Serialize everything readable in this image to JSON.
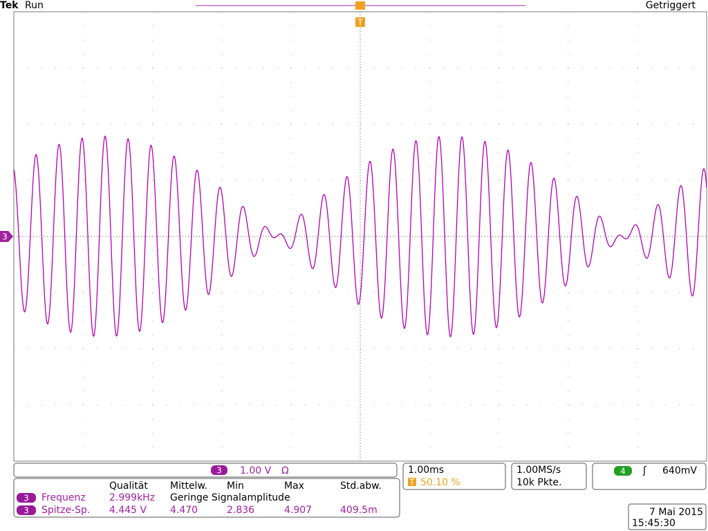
{
  "header": {
    "brand": "Tek",
    "status": "Run",
    "trigger_state": "Getriggert",
    "trigger_marker": "T",
    "channel_marker": "3"
  },
  "channel": {
    "number": "3",
    "scale": "1.00 V",
    "impedance": "Ω"
  },
  "timebase": {
    "scale": "1.00ms",
    "trigger_marker": "T",
    "trigger_position": "50.10 %"
  },
  "acquisition": {
    "sample_rate": "1.00MS/s",
    "record_length": "10k Pkte."
  },
  "trigger": {
    "channel": "4",
    "slope": "ʃ",
    "level": "640mV"
  },
  "measurements": {
    "headers": [
      "Qualität",
      "Mittelw.",
      "Min",
      "Max",
      "Std.abw."
    ],
    "rows": [
      {
        "channel": "3",
        "name": "Frequenz",
        "value": "2.999kHz",
        "note": "Geringe Signalamplitude"
      },
      {
        "channel": "3",
        "name": "Spitze-Sp.",
        "value": "4.445 V",
        "mean": "4.470",
        "min": "2.836",
        "max": "4.907",
        "std": "409.5m"
      }
    ]
  },
  "datetime": {
    "date": "7 Mai 2015",
    "time": "15:45:30"
  }
}
